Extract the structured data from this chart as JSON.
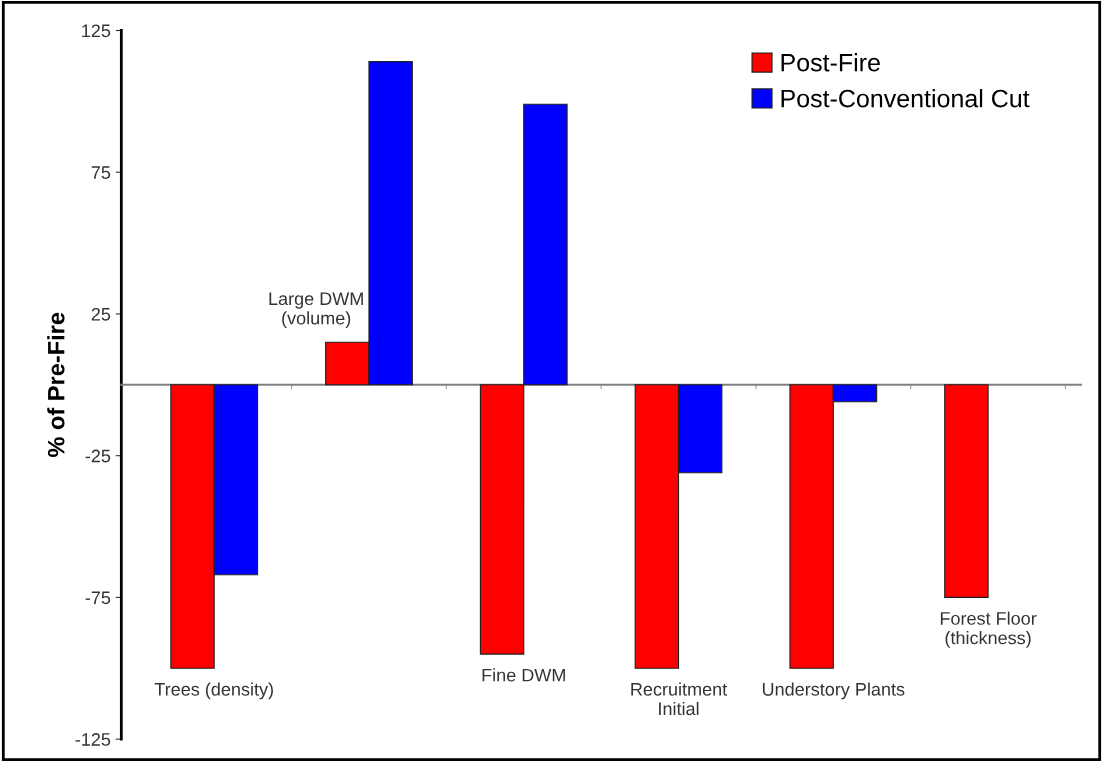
{
  "chart_data": {
    "type": "bar",
    "ylabel": "% of Pre-Fire",
    "categories": [
      "Trees (density)",
      "Large DWM\n(volume)",
      "Fine DWM",
      "Recruitment\nInitial",
      "Understory Plants",
      "Forest Floor\n(thickness)"
    ],
    "series": [
      {
        "name": "Post-Fire",
        "color": "#ff0000",
        "values": [
          -100,
          15,
          -95,
          -100,
          -100,
          -75
        ]
      },
      {
        "name": "Post-Conventional Cut",
        "color": "#0000ff",
        "values": [
          -67,
          114,
          99,
          -31,
          -6,
          null
        ]
      }
    ],
    "ylim": [
      -125,
      125
    ],
    "yticks": [
      {
        "value": 125,
        "label": "125"
      },
      {
        "value": 75,
        "label": "75"
      },
      {
        "value": 25,
        "label": "25"
      },
      {
        "value": -25,
        "label": "-25"
      },
      {
        "value": -75,
        "label": "-75"
      },
      {
        "value": -125,
        "label": "-125"
      }
    ],
    "tick_labels": "y",
    "legend": "top right",
    "grid": false
  }
}
